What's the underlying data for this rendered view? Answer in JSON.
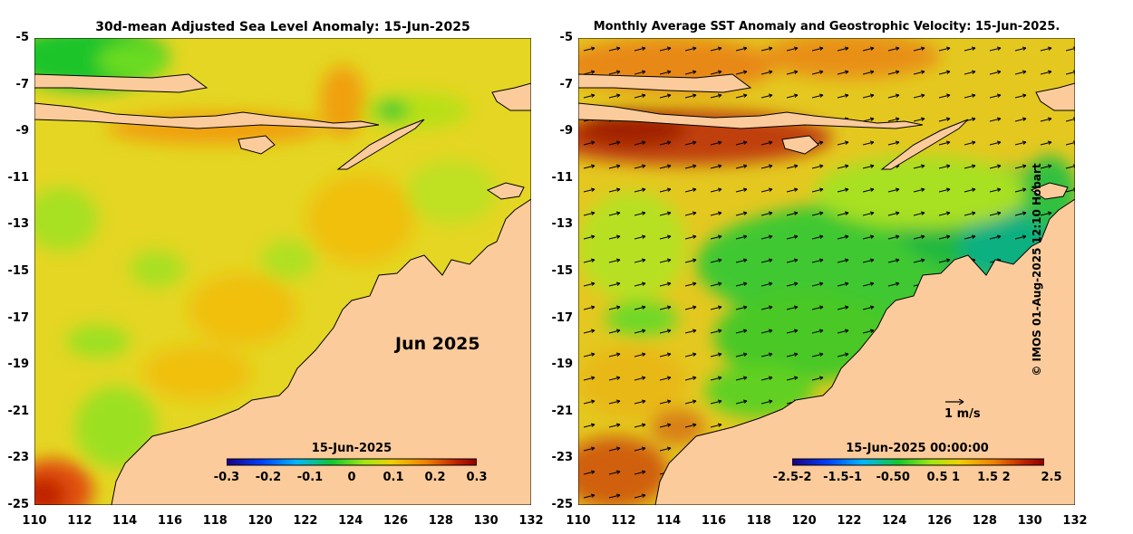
{
  "left_panel": {
    "title": "30d-mean Adjusted Sea Level Anomaly: 15-Jun-2025",
    "month_label": "Jun 2025",
    "colorbar": {
      "date_label": "15-Jun-2025",
      "ticks": [
        "-0.3",
        "-0.2",
        "-0.1",
        "0",
        "0.1",
        "0.2",
        "0.3"
      ]
    }
  },
  "right_panel": {
    "title": "Monthly Average SST Anomaly  and Geostrophic Velocity: 15-Jun-2025.",
    "scale_label": "1 m/s",
    "colorbar": {
      "date_label": "15-Jun-2025 00:00:00",
      "ticks": [
        "-2.5-2",
        "-1.5-1",
        "-0.50",
        "0.5 1",
        "1.5 2",
        "2.5"
      ]
    }
  },
  "axes": {
    "lat_ticks": [
      "-5",
      "-7",
      "-9",
      "-11",
      "-13",
      "-15",
      "-17",
      "-19",
      "-21",
      "-23",
      "-25"
    ],
    "lon_ticks": [
      "110",
      "112",
      "114",
      "116",
      "118",
      "120",
      "122",
      "124",
      "126",
      "128",
      "130",
      "132"
    ],
    "lon_range": [
      110,
      132
    ],
    "lat_range": [
      -25,
      -5
    ]
  },
  "credit": "© IMOS 01-Aug-2025 12:10 Hobart",
  "colors": {
    "land": "#fccb9b",
    "ocean_base": "#e8d820",
    "colormap": [
      "#1a0080",
      "#0040ff",
      "#00c0ff",
      "#10c830",
      "#a0e810",
      "#f0d000",
      "#f08000",
      "#c02000",
      "#900000"
    ]
  }
}
